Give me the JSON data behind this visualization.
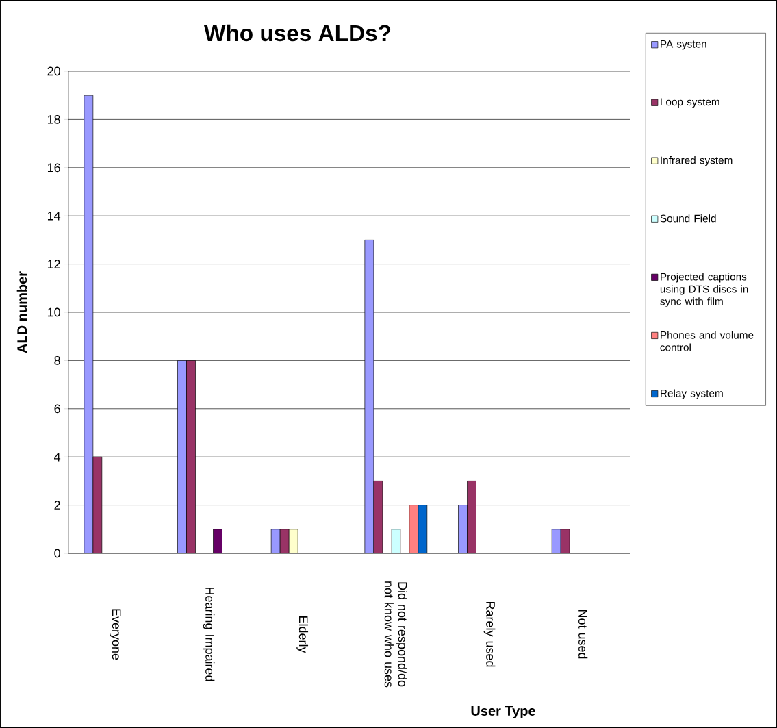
{
  "chart_data": {
    "type": "bar",
    "title": "Who uses ALDs?",
    "xlabel": "User Type",
    "ylabel": "ALD number",
    "categories": [
      "Everyone",
      "Hearing Impaired",
      "Elderly",
      "Did not respond/do not know who uses",
      "Rarely used",
      "Not used"
    ],
    "series": [
      {
        "name": "PA systen",
        "color": "#9999ff",
        "values": [
          19,
          8,
          1,
          13,
          2,
          1
        ]
      },
      {
        "name": "Loop system",
        "color": "#993366",
        "values": [
          4,
          8,
          1,
          3,
          3,
          1
        ]
      },
      {
        "name": "Infrared system",
        "color": "#ffffcc",
        "values": [
          null,
          null,
          1,
          null,
          null,
          null
        ]
      },
      {
        "name": "Sound Field",
        "color": "#ccffff",
        "values": [
          null,
          null,
          null,
          1,
          null,
          null
        ]
      },
      {
        "name": "Projected captions using DTS discs in sync with film",
        "color": "#660066",
        "values": [
          null,
          1,
          null,
          null,
          null,
          null
        ]
      },
      {
        "name": "Phones and volume control",
        "color": "#ff8080",
        "values": [
          null,
          null,
          null,
          2,
          null,
          null
        ]
      },
      {
        "name": "Relay system",
        "color": "#0066cc",
        "values": [
          null,
          null,
          null,
          2,
          null,
          null
        ]
      }
    ],
    "ylim": [
      0,
      20
    ],
    "yticks": [
      0,
      2,
      4,
      6,
      8,
      10,
      12,
      14,
      16,
      18,
      20
    ],
    "grid": "y",
    "legend": "right"
  }
}
